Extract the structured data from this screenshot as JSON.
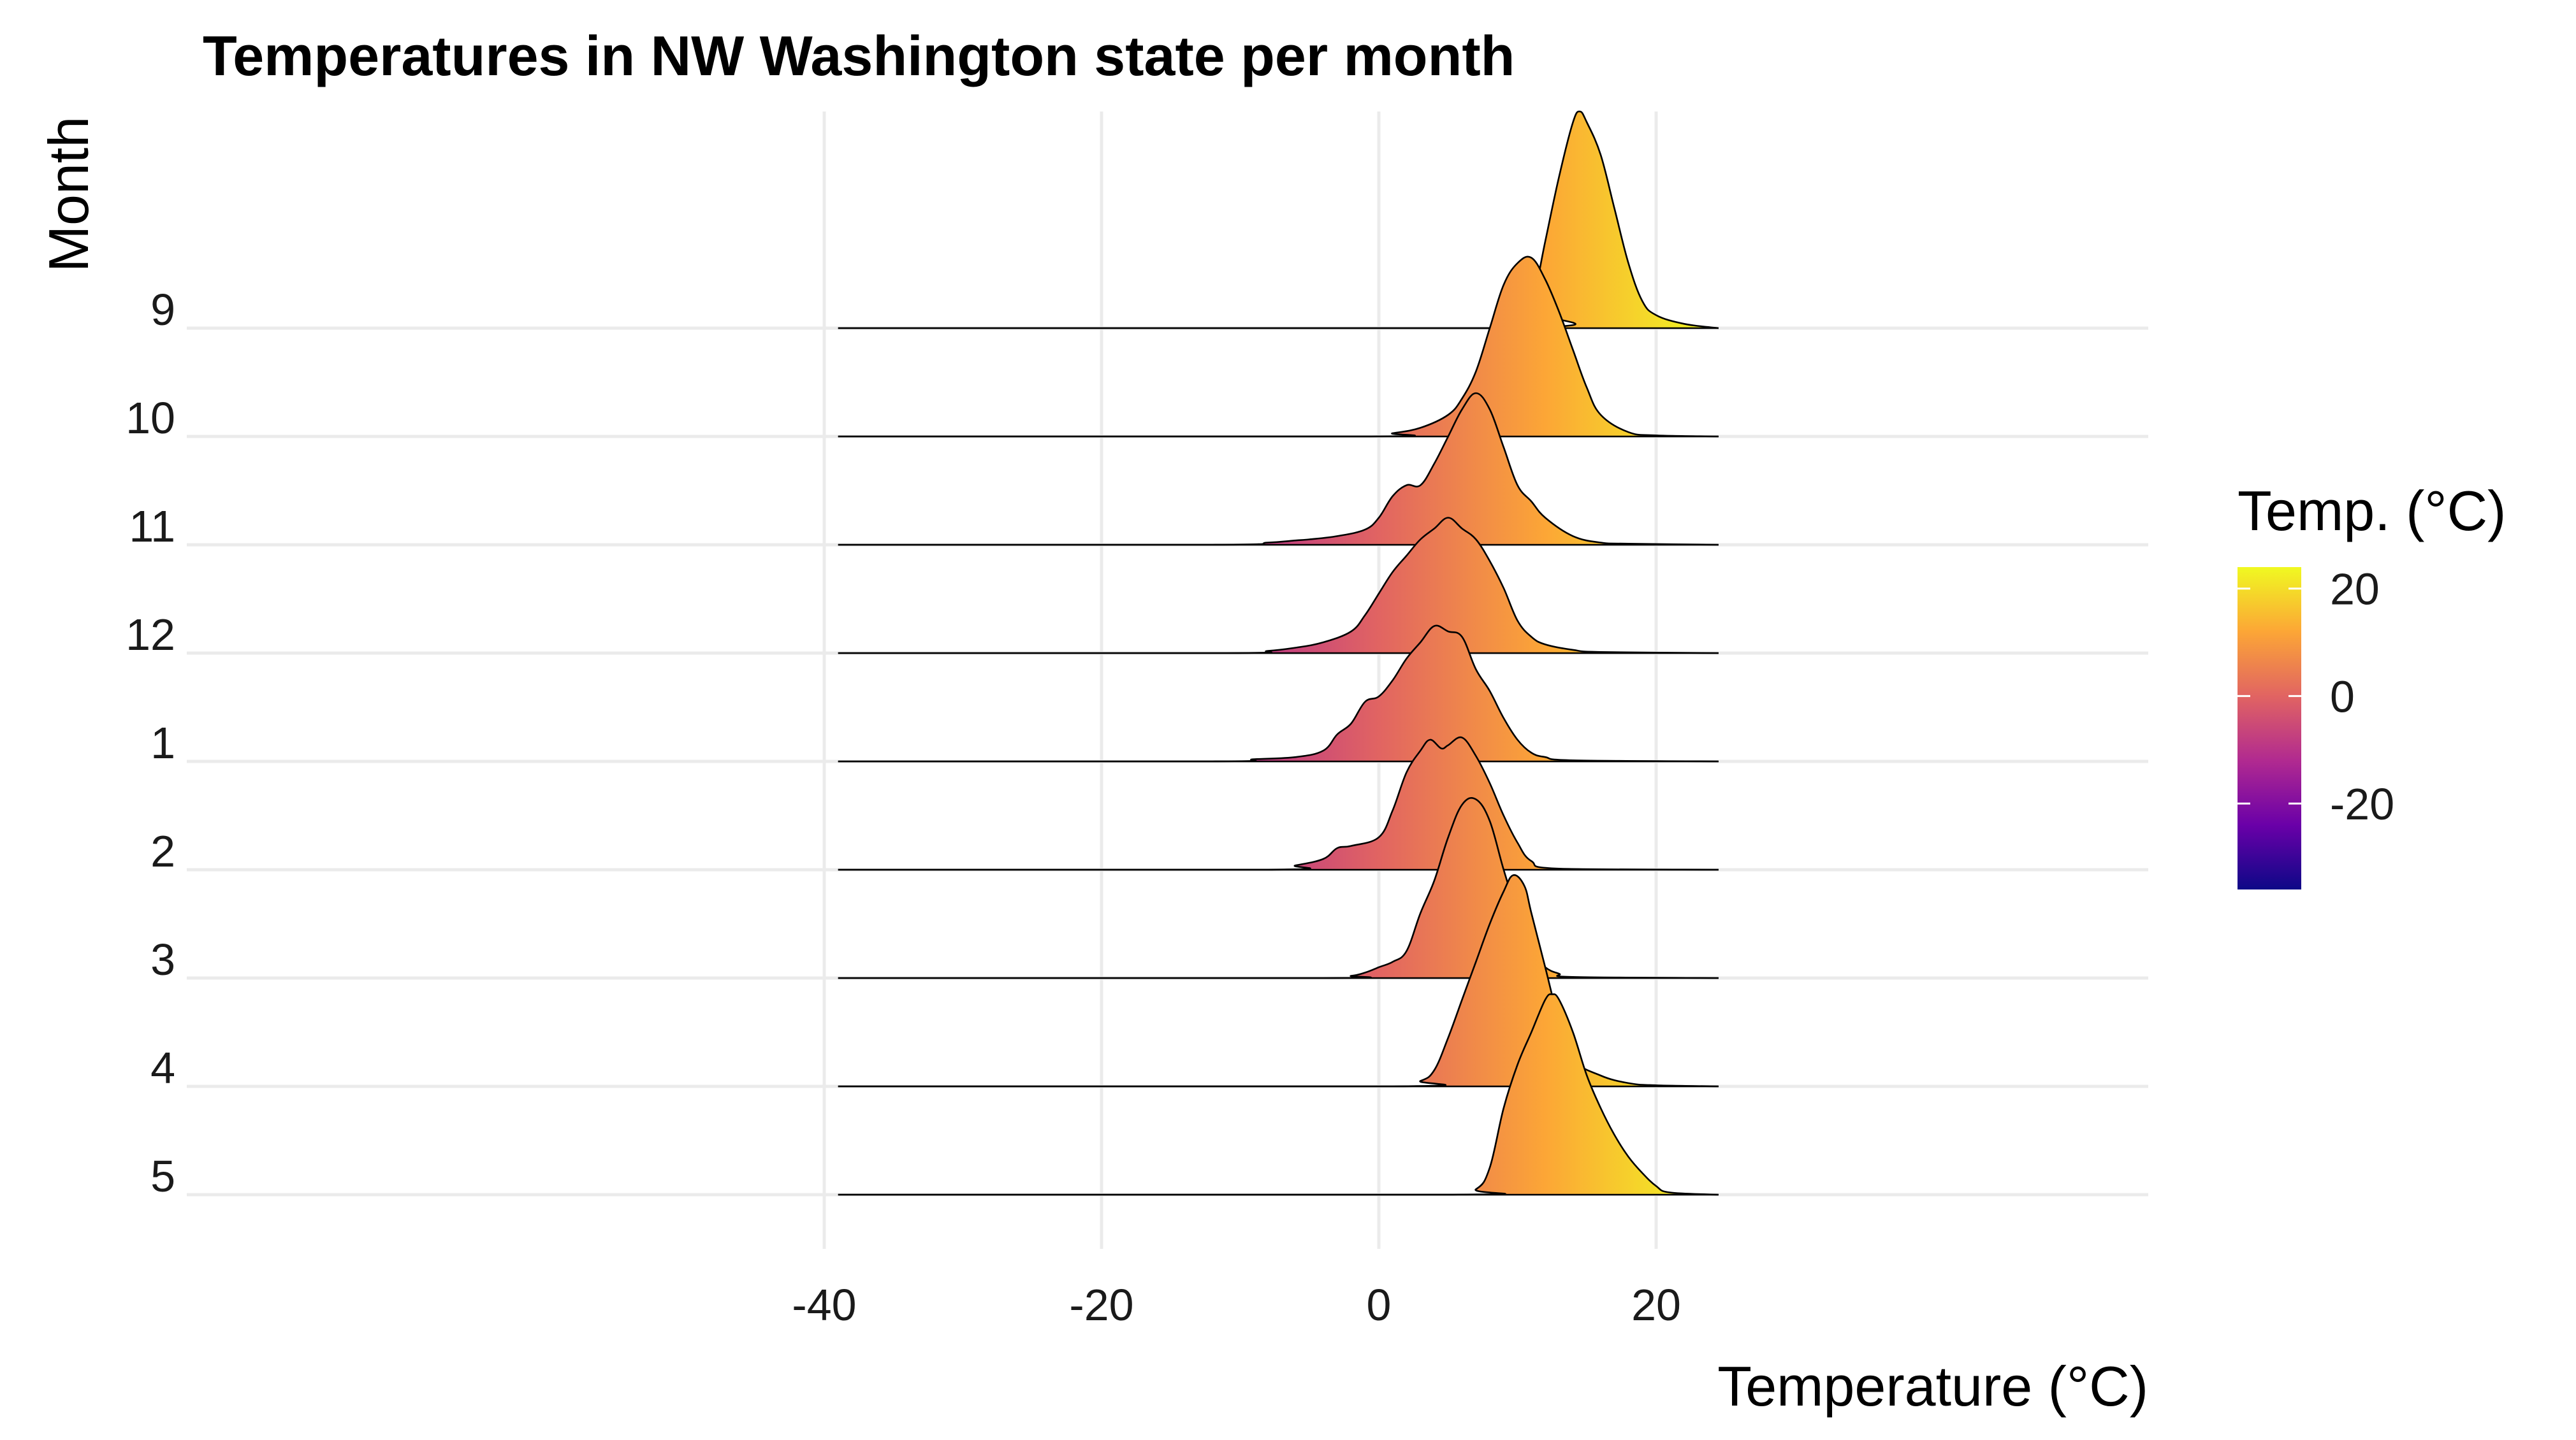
{
  "chart_data": {
    "type": "ridgeline",
    "title": "Temperatures in NW Washington state per month",
    "xlabel": "Temperature (°C)",
    "ylabel": "Month",
    "xlim": [
      -41,
      27
    ],
    "x_ticks": [
      -40,
      -20,
      0,
      20
    ],
    "categories": [
      "9",
      "10",
      "11",
      "12",
      "1",
      "2",
      "3",
      "4",
      "5"
    ],
    "grid": true,
    "series": [
      {
        "name": "9",
        "peak_density": 0.2,
        "x": [
          -39,
          10,
          11,
          12,
          13,
          14,
          14.5,
          15,
          16,
          17,
          18,
          19,
          20,
          22,
          24.5
        ],
        "density": [
          0,
          0,
          0.02,
          0.08,
          0.14,
          0.19,
          0.2,
          0.19,
          0.16,
          0.11,
          0.06,
          0.025,
          0.012,
          0.004,
          0
        ]
      },
      {
        "name": "10",
        "peak_density": 0.165,
        "x": [
          -39,
          -1,
          1,
          3,
          5,
          6,
          7,
          8,
          9,
          10,
          11,
          12,
          13,
          14,
          15,
          16,
          18,
          20,
          24.5
        ],
        "density": [
          0,
          0,
          0.003,
          0.008,
          0.02,
          0.035,
          0.06,
          0.1,
          0.14,
          0.16,
          0.165,
          0.145,
          0.115,
          0.08,
          0.045,
          0.02,
          0.004,
          0.001,
          0
        ]
      },
      {
        "name": "11",
        "peak_density": 0.14,
        "x": [
          -39,
          -12,
          -8,
          -6,
          -5,
          -3,
          -1,
          0,
          1,
          2,
          3,
          4,
          5,
          6,
          7,
          8,
          9,
          10,
          11,
          12,
          14,
          16,
          18,
          24.5
        ],
        "density": [
          0,
          0,
          0.002,
          0.004,
          0.005,
          0.008,
          0.014,
          0.025,
          0.045,
          0.055,
          0.055,
          0.075,
          0.1,
          0.125,
          0.14,
          0.125,
          0.09,
          0.055,
          0.04,
          0.025,
          0.008,
          0.002,
          0.001,
          0
        ]
      },
      {
        "name": "12",
        "peak_density": 0.125,
        "x": [
          -39,
          -11,
          -8,
          -6,
          -4,
          -2,
          -1,
          0,
          1,
          2,
          3,
          4,
          5,
          6,
          7,
          8,
          9,
          10,
          11,
          12,
          14,
          16,
          24.5
        ],
        "density": [
          0,
          0,
          0.002,
          0.005,
          0.01,
          0.02,
          0.035,
          0.055,
          0.075,
          0.09,
          0.105,
          0.115,
          0.125,
          0.115,
          0.105,
          0.085,
          0.06,
          0.03,
          0.015,
          0.008,
          0.003,
          0.001,
          0
        ]
      },
      {
        "name": "1",
        "peak_density": 0.126,
        "x": [
          -39,
          -12,
          -9,
          -6,
          -4,
          -3,
          -2,
          -1,
          0,
          1,
          2,
          3,
          4,
          5,
          6,
          7,
          8,
          9,
          10,
          11,
          12,
          14,
          24.5
        ],
        "density": [
          0,
          0,
          0.002,
          0.004,
          0.01,
          0.025,
          0.035,
          0.055,
          0.06,
          0.075,
          0.095,
          0.11,
          0.125,
          0.12,
          0.115,
          0.085,
          0.065,
          0.04,
          0.02,
          0.008,
          0.004,
          0.001,
          0
        ]
      },
      {
        "name": "2",
        "peak_density": 0.122,
        "x": [
          -39,
          -8,
          -6,
          -4,
          -3,
          -2,
          0,
          1,
          2,
          3,
          3.7,
          4.5,
          5,
          6,
          7,
          8,
          9,
          10,
          11,
          13,
          24.5
        ],
        "density": [
          0,
          0,
          0.004,
          0.01,
          0.02,
          0.022,
          0.03,
          0.055,
          0.09,
          0.11,
          0.12,
          0.112,
          0.115,
          0.122,
          0.105,
          0.08,
          0.05,
          0.025,
          0.008,
          0.001,
          0
        ]
      },
      {
        "name": "3",
        "peak_density": 0.165,
        "x": [
          -39,
          -4,
          -2,
          -1,
          0,
          1,
          2,
          3,
          4,
          5,
          6,
          7,
          8,
          9,
          10,
          11,
          12,
          13,
          14,
          24.5
        ],
        "density": [
          0,
          0,
          0.002,
          0.005,
          0.01,
          0.015,
          0.025,
          0.06,
          0.09,
          0.13,
          0.16,
          0.165,
          0.145,
          0.1,
          0.06,
          0.025,
          0.01,
          0.004,
          0.001,
          0
        ]
      },
      {
        "name": "4",
        "peak_density": 0.195,
        "x": [
          -39,
          1,
          3,
          4,
          5,
          6,
          7,
          8,
          9,
          9.7,
          10.5,
          11,
          12,
          13,
          14,
          16,
          18,
          20,
          24.5
        ],
        "density": [
          0,
          0,
          0.005,
          0.015,
          0.045,
          0.08,
          0.115,
          0.15,
          0.18,
          0.195,
          0.185,
          0.16,
          0.11,
          0.06,
          0.025,
          0.01,
          0.003,
          0.001,
          0
        ]
      },
      {
        "name": "5",
        "peak_density": 0.185,
        "x": [
          -39,
          5,
          7,
          8,
          9,
          10,
          11,
          12,
          12.5,
          13,
          14,
          15,
          16,
          17,
          18,
          19,
          20,
          21,
          24.5
        ],
        "density": [
          0,
          0,
          0.005,
          0.025,
          0.08,
          0.12,
          0.15,
          0.18,
          0.185,
          0.18,
          0.15,
          0.11,
          0.08,
          0.055,
          0.035,
          0.02,
          0.008,
          0.002,
          0
        ]
      }
    ],
    "colorbar": {
      "title": "Temp. (°C)",
      "range": [
        -36,
        24
      ],
      "ticks": [
        20,
        0,
        -20
      ],
      "palette": "plasma",
      "colors": [
        "#0d0887",
        "#6a00a8",
        "#b12a90",
        "#e16462",
        "#fca636",
        "#f0f921"
      ]
    }
  }
}
